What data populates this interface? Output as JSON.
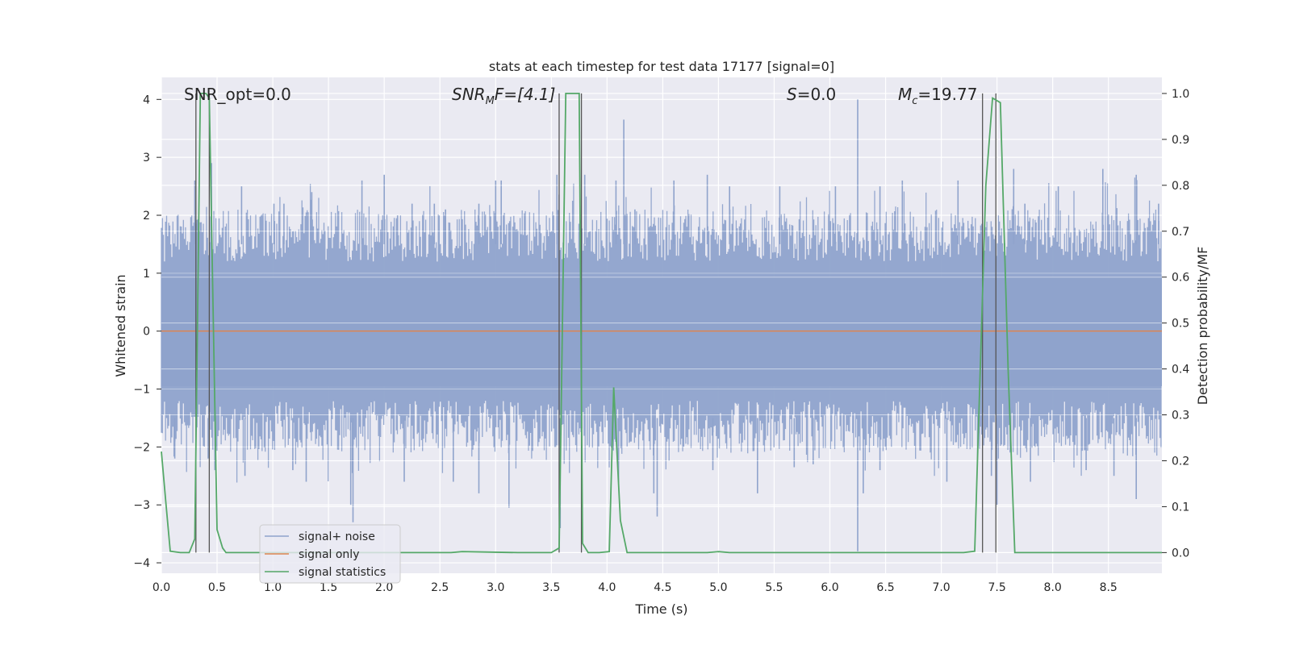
{
  "chart_data": {
    "type": "line",
    "title": "stats at each timestep for test data 17177 [signal=0]",
    "xlabel": "Time (s)",
    "ylabel": "Whitened strain",
    "y2label": "Detection probability/MF",
    "xlim": [
      0.0,
      8.98
    ],
    "ylim": [
      -4.18,
      4.38
    ],
    "y2lim": [
      -0.045,
      1.035
    ],
    "xticks": [
      "0.0",
      "0.5",
      "1.0",
      "1.5",
      "2.0",
      "2.5",
      "3.0",
      "3.5",
      "4.0",
      "4.5",
      "5.0",
      "5.5",
      "6.0",
      "6.5",
      "7.0",
      "7.5",
      "8.0",
      "8.5"
    ],
    "yticks": [
      "4",
      "3",
      "2",
      "1",
      "0",
      "−1",
      "−2",
      "−3",
      "−4"
    ],
    "y2ticks": [
      "1.0",
      "0.9",
      "0.8",
      "0.7",
      "0.6",
      "0.5",
      "0.4",
      "0.3",
      "0.2",
      "0.1",
      "0.0"
    ],
    "grid": true,
    "legend_position": "lower-left",
    "annotations": {
      "snr_opt": "SNR_opt=0.0",
      "snr_mf_base": "SNR",
      "snr_mf_sub": "M",
      "snr_mf_rest": "F=[4.1]",
      "s_italic": "S",
      "s_rest": "=0.0",
      "mc_italic": "M",
      "mc_sub": "c",
      "mc_rest": "=19.77"
    },
    "series": [
      {
        "name": "signal+ noise",
        "color": "#8fa3cc",
        "description_values": "noise",
        "band_low_std": -1.5,
        "band_high_std": 1.6,
        "spikes_up": [
          [
            0.3,
            2.6
          ],
          [
            0.45,
            2.9
          ],
          [
            0.72,
            2.5
          ],
          [
            1.01,
            2.2
          ],
          [
            1.1,
            2.2
          ],
          [
            1.35,
            2.4
          ],
          [
            1.8,
            2.6
          ],
          [
            2.0,
            2.7
          ],
          [
            2.12,
            2.0
          ],
          [
            2.25,
            2.2
          ],
          [
            2.45,
            2.2
          ],
          [
            2.55,
            2.1
          ],
          [
            2.85,
            2.2
          ],
          [
            3.0,
            2.6
          ],
          [
            3.05,
            2.6
          ],
          [
            3.55,
            2.7
          ],
          [
            3.8,
            2.7
          ],
          [
            4.08,
            2.6
          ],
          [
            4.15,
            3.65
          ],
          [
            4.25,
            2.1
          ],
          [
            4.6,
            2.6
          ],
          [
            4.9,
            2.7
          ],
          [
            5.1,
            2.5
          ],
          [
            5.55,
            2.5
          ],
          [
            6.05,
            2.5
          ],
          [
            6.25,
            4.0
          ],
          [
            6.45,
            2.5
          ],
          [
            6.65,
            2.6
          ],
          [
            7.15,
            2.6
          ],
          [
            7.65,
            2.8
          ],
          [
            7.75,
            2.2
          ],
          [
            8.05,
            2.5
          ],
          [
            8.45,
            2.8
          ],
          [
            8.75,
            2.7
          ],
          [
            8.95,
            2.2
          ]
        ],
        "spikes_down": [
          [
            0.12,
            -2.2
          ],
          [
            0.42,
            -2.2
          ],
          [
            0.48,
            -2.4
          ],
          [
            0.75,
            -2.5
          ],
          [
            1.18,
            -2.4
          ],
          [
            1.3,
            -2.6
          ],
          [
            1.7,
            -3.0
          ],
          [
            1.72,
            -3.3
          ],
          [
            2.18,
            -2.6
          ],
          [
            2.62,
            -2.6
          ],
          [
            2.85,
            -2.8
          ],
          [
            3.12,
            -3.05
          ],
          [
            3.58,
            -3.4
          ],
          [
            4.1,
            -2.4
          ],
          [
            4.42,
            -2.8
          ],
          [
            4.45,
            -3.2
          ],
          [
            4.95,
            -2.4
          ],
          [
            5.35,
            -2.8
          ],
          [
            5.68,
            -2.35
          ],
          [
            5.85,
            -2.3
          ],
          [
            6.25,
            -3.8
          ],
          [
            6.3,
            -2.8
          ],
          [
            6.45,
            -2.4
          ],
          [
            7.05,
            -2.6
          ],
          [
            7.45,
            -2.5
          ],
          [
            7.5,
            -3.0
          ],
          [
            7.8,
            -2.6
          ],
          [
            8.3,
            -2.4
          ],
          [
            8.55,
            -2.5
          ],
          [
            8.75,
            -2.9
          ]
        ]
      },
      {
        "name": "signal only",
        "color": "#dd8452",
        "x": [
          0.0,
          8.98
        ],
        "y": [
          0.0,
          0.0
        ]
      },
      {
        "name": "signal statistics",
        "color": "#55a868",
        "axis": "right",
        "x": [
          0.0,
          0.04,
          0.08,
          0.17,
          0.25,
          0.3,
          0.35,
          0.4,
          0.43,
          0.5,
          0.55,
          0.58,
          0.65,
          2.6,
          2.7,
          3.2,
          3.5,
          3.57,
          3.63,
          3.75,
          3.78,
          3.83,
          3.93,
          4.02,
          4.06,
          4.12,
          4.18,
          4.9,
          5.0,
          5.1,
          7.2,
          7.3,
          7.4,
          7.46,
          7.53,
          7.6,
          7.66,
          8.98
        ],
        "y": [
          0.22,
          0.11,
          0.003,
          0.0,
          0.0,
          0.03,
          1.0,
          1.0,
          0.99,
          0.05,
          0.01,
          0.0,
          0.0,
          0.0,
          0.002,
          0.0,
          0.0,
          0.01,
          1.0,
          1.0,
          0.02,
          0.0,
          0.0,
          0.002,
          0.36,
          0.07,
          0.0,
          0.0,
          0.002,
          0.0,
          0.0,
          0.003,
          0.8,
          0.99,
          0.98,
          0.4,
          0.0,
          0.0
        ]
      }
    ],
    "vertical_lines": [
      0.31,
      0.43,
      3.57,
      3.77,
      7.37,
      7.49
    ]
  }
}
